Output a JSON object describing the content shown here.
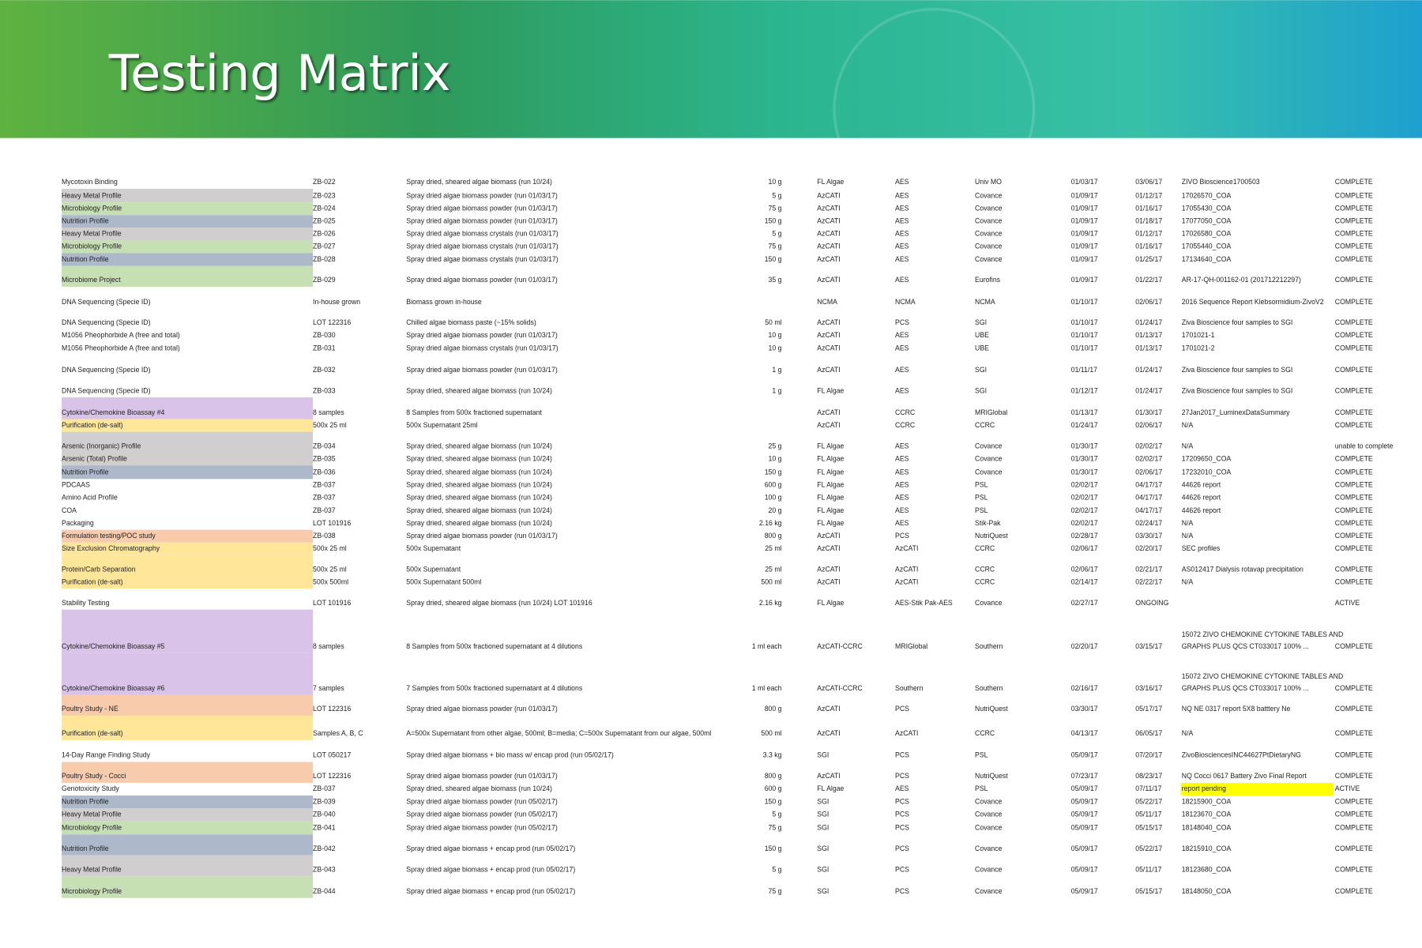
{
  "header": {
    "title": "Testing Matrix"
  },
  "table": {
    "rows": [
      {
        "color": null,
        "cells": [
          "Mycotoxin Binding",
          "ZB-022",
          "Spray dried, sheared algae biomass (run 10/24)",
          "10 g",
          "FL Algae",
          "AES",
          "Univ MO",
          "01/03/17",
          "03/06/17",
          "ZIVO Bioscience1700503",
          "COMPLETE"
        ]
      },
      {
        "color": "#d0cece",
        "cells": [
          "Heavy Metal Profile",
          "ZB-023",
          "Spray dried algae biomass powder (run 01/03/17)",
          "5 g",
          "AzCATI",
          "AES",
          "Covance",
          "01/09/17",
          "01/12/17",
          "17026570_COA",
          "COMPLETE"
        ]
      },
      {
        "color": "#c6e0b4",
        "cells": [
          "Microbiology Profile",
          "ZB-024",
          "Spray dried algae biomass powder (run 01/03/17)",
          "75 g",
          "AzCATI",
          "AES",
          "Covance",
          "01/09/17",
          "01/16/17",
          "17055430_COA",
          "COMPLETE"
        ]
      },
      {
        "color": "#adb9ca",
        "cells": [
          "Nutrition Profile",
          "ZB-025",
          "Spray dried algae biomass powder (run 01/03/17)",
          "150 g",
          "AzCATI",
          "AES",
          "Covance",
          "01/09/17",
          "01/18/17",
          "17077050_COA",
          "COMPLETE"
        ]
      },
      {
        "color": "#d0cece",
        "cells": [
          "Heavy Metal Profile",
          "ZB-026",
          "Spray dried algae biomass crystals (run 01/03/17)",
          "5 g",
          "AzCATI",
          "AES",
          "Covance",
          "01/09/17",
          "01/12/17",
          "17026580_COA",
          "COMPLETE"
        ]
      },
      {
        "color": "#c6e0b4",
        "cells": [
          "Microbiology Profile",
          "ZB-027",
          "Spray dried algae biomass crystals (run 01/03/17)",
          "75 g",
          "AzCATI",
          "AES",
          "Covance",
          "01/09/17",
          "01/16/17",
          "17055440_COA",
          "COMPLETE"
        ]
      },
      {
        "color": "#adb9ca",
        "cells": [
          "Nutrition Profile",
          "ZB-028",
          "Spray dried algae biomass crystals (run 01/03/17)",
          "150 g",
          "AzCATI",
          "AES",
          "Covance",
          "01/09/17",
          "01/25/17",
          "17134640_COA",
          "COMPLETE"
        ]
      },
      {
        "color": "#c6e0b4",
        "cells": [
          "Microbiome Project",
          "ZB-029",
          "Spray dried algae biomass powder (run 01/03/17)",
          "35 g",
          "AzCATI",
          "AES",
          "Eurofins",
          "01/09/17",
          "01/22/17",
          "AR-17-QH-001162-01 (201712212297)",
          "COMPLETE"
        ]
      },
      {
        "color": null,
        "cells": [
          "DNA Sequencing (Specie ID)",
          "In-house grown",
          "Biomass grown in-house",
          null,
          "NCMA",
          "NCMA",
          "NCMA",
          "01/10/17",
          "02/06/17",
          "2016 Sequence Report Klebsormidium-ZivoV2",
          "COMPLETE"
        ]
      },
      {
        "color": null,
        "cells": [
          "DNA Sequencing (Specie ID)",
          "LOT 122316",
          "Chilled algae biomass paste (~15% solids)",
          "50 ml",
          "AzCATI",
          "PCS",
          "SGI",
          "01/10/17",
          "01/24/17",
          "Ziva Bioscience four samples to SGI",
          "COMPLETE"
        ]
      },
      {
        "color": null,
        "cells": [
          "M1056 Pheophorbide A (free and total)",
          "ZB-030",
          "Spray dried algae biomass powder (run 01/03/17)",
          "10 g",
          "AzCATI",
          "AES",
          "UBE",
          "01/10/17",
          "01/13/17",
          "1701021-1",
          "COMPLETE"
        ]
      },
      {
        "color": null,
        "cells": [
          "M1056 Pheophorbide A (free and total)",
          "ZB-031",
          "Spray dried algae biomass crystals (run 01/03/17)",
          "10 g",
          "AzCATI",
          "AES",
          "UBE",
          "01/10/17",
          "01/13/17",
          "1701021-2",
          "COMPLETE"
        ]
      },
      {
        "color": null,
        "cells": [
          "DNA Sequencing (Specie ID)",
          "ZB-032",
          "Spray dried algae biomass powder (run 01/03/17)",
          "1 g",
          "AzCATI",
          "AES",
          "SGI",
          "01/11/17",
          "01/24/17",
          "Ziva Bioscience four samples to SGI",
          "COMPLETE"
        ]
      },
      {
        "color": null,
        "cells": [
          "DNA Sequencing (Specie ID)",
          "ZB-033",
          "Spray dried, sheared algae biomass (run 10/24)",
          "1 g",
          "FL Algae",
          "AES",
          "SGI",
          "01/12/17",
          "01/24/17",
          "Ziva Bioscience four samples to SGI",
          "COMPLETE"
        ]
      },
      {
        "color": "#d9c3e9",
        "cells": [
          "Cytokine/Chemokine Bioassay #4",
          "8 samples",
          "8 Samples from 500x fractioned supernatant",
          null,
          "AzCATI",
          "CCRC",
          "MRIGlobal",
          "01/13/17",
          "01/30/17",
          "27Jan2017_LuminexDataSummary",
          "COMPLETE"
        ]
      },
      {
        "color": "#ffe699",
        "cells": [
          "Purification (de-salt)",
          "500x 25 ml",
          "500x Supernatant 25ml",
          null,
          "AzCATI",
          "CCRC",
          "CCRC",
          "01/24/17",
          "02/06/17",
          "N/A",
          "COMPLETE"
        ]
      },
      {
        "color": "#d0cece",
        "cells": [
          "Arsenic (Inorganic) Profile",
          "ZB-034",
          "Spray dried, sheared algae biomass (run 10/24)",
          "25 g",
          "FL Algae",
          "AES",
          "Covance",
          "01/30/17",
          "02/02/17",
          "N/A",
          "unable to complete"
        ]
      },
      {
        "color": "#d0cece",
        "cells": [
          "Arsenic (Total) Profile",
          "ZB-035",
          "Spray dried, sheared algae biomass (run 10/24)",
          "10 g",
          "FL Algae",
          "AES",
          "Covance",
          "01/30/17",
          "02/02/17",
          "17209650_COA",
          "COMPLETE"
        ]
      },
      {
        "color": "#adb9ca",
        "cells": [
          "Nutrition Profile",
          "ZB-036",
          "Spray dried, sheared algae biomass (run 10/24)",
          "150 g",
          "FL Algae",
          "AES",
          "Covance",
          "01/30/17",
          "02/06/17",
          "17232010_COA",
          "COMPLETE"
        ]
      },
      {
        "color": null,
        "cells": [
          "PDCAAS",
          "ZB-037",
          "Spray dried, sheared algae biomass (run 10/24)",
          "600 g",
          "FL Algae",
          "AES",
          "PSL",
          "02/02/17",
          "04/17/17",
          "44626 report",
          "COMPLETE"
        ]
      },
      {
        "color": null,
        "cells": [
          "Amino Acid Profile",
          "ZB-037",
          "Spray dried, sheared algae biomass (run 10/24)",
          "100 g",
          "FL Algae",
          "AES",
          "PSL",
          "02/02/17",
          "04/17/17",
          "44626 report",
          "COMPLETE"
        ]
      },
      {
        "color": null,
        "cells": [
          "COA",
          "ZB-037",
          "Spray dried, sheared algae biomass (run 10/24)",
          "20 g",
          "FL Algae",
          "AES",
          "PSL",
          "02/02/17",
          "04/17/17",
          "44626 report",
          "COMPLETE"
        ]
      },
      {
        "color": null,
        "cells": [
          "Packaging",
          "LOT 101916",
          "Spray dried, sheared algae biomass (run 10/24)",
          "2.16 kg",
          "FL Algae",
          "AES",
          "Stik-Pak",
          "02/02/17",
          "02/24/17",
          "N/A",
          "COMPLETE"
        ]
      },
      {
        "color": "#f8cbad",
        "cells": [
          "Formulation testing/POC study",
          "ZB-038",
          "Spray dried algae biomass powder (run 01/03/17)",
          "800 g",
          "AzCATI",
          "PCS",
          "NutriQuest",
          "02/28/17",
          "03/30/17",
          "N/A",
          "COMPLETE"
        ]
      },
      {
        "color": "#ffe699",
        "cells": [
          "Size Exclusion Chromatography",
          "500x 25 ml",
          "500x Supernatant",
          "25 ml",
          "AzCATI",
          "AzCATI",
          "CCRC",
          "02/06/17",
          "02/20/17",
          "SEC profiles",
          "COMPLETE"
        ]
      },
      {
        "color": "#ffe699",
        "cells": [
          "Protein/Carb Separation",
          "500x 25 ml",
          "500x Supernatant",
          "25 ml",
          "AzCATI",
          "AzCATI",
          "CCRC",
          "02/06/17",
          "02/21/17",
          "AS012417 Dialysis rotavap precipitation",
          "COMPLETE"
        ]
      },
      {
        "color": "#ffe699",
        "cells": [
          "Purification (de-salt)",
          "500x 500ml",
          "500x Supernatant 500ml",
          "500 ml",
          "AzCATI",
          "AzCATI",
          "CCRC",
          "02/14/17",
          "02/22/17",
          "N/A",
          "COMPLETE"
        ]
      },
      {
        "color": null,
        "cells": [
          "Stability Testing",
          "LOT 101916",
          "Spray dried, sheared algae biomass (run 10/24) LOT 101916",
          "2.16 kg",
          "FL Algae",
          "AES-Stik Pak-AES",
          "Covance",
          "02/27/17",
          "ONGOING",
          null,
          "ACTIVE"
        ]
      },
      {
        "color": "#d9c3e9",
        "cells": [
          "Cytokine/Chemokine Bioassay #5",
          "8 samples",
          "8 Samples from 500x fractioned supernatant at 4 dilutions",
          "1 ml each",
          "AzCATI-CCRC",
          "MRIGlobal",
          "Southern",
          "02/20/17",
          "03/15/17",
          [
            "15072 ZIVO CHEMOKINE CYTOKINE TABLES AND",
            "GRAPHS PLUS QCS CT033017 100% ..."
          ],
          "COMPLETE"
        ]
      },
      {
        "color": "#d9c3e9",
        "cells": [
          "Cytokine/Chemokine Bioassay #6",
          "7 samples",
          "7 Samples from 500x fractioned supernatant at 4 dilutions",
          "1 ml each",
          "AzCATI-CCRC",
          "Southern",
          "Southern",
          "02/16/17",
          "03/16/17",
          [
            "15072 ZIVO CHEMOKINE CYTOKINE TABLES AND",
            "GRAPHS PLUS QCS CT033017 100% ..."
          ],
          "COMPLETE"
        ]
      },
      {
        "color": "#f8cbad",
        "cells": [
          "Poultry Study - NE",
          "LOT 122316",
          "Spray dried algae biomass powder (run 01/03/17)",
          "800 g",
          "AzCATI",
          "PCS",
          "NutriQuest",
          "03/30/17",
          "05/17/17",
          "NQ NE 0317 report 5X8 batttery Ne",
          "COMPLETE"
        ]
      },
      {
        "color": "#ffe699",
        "cells": [
          "Purification (de-salt)",
          "Samples A, B, C",
          "A=500x Supernatant from other algae, 500ml; B=media; C=500x Supernatant from our algae, 500ml",
          "500 ml",
          "AzCATI",
          "AzCATI",
          "CCRC",
          "04/13/17",
          "06/05/17",
          "N/A",
          "COMPLETE"
        ]
      },
      {
        "color": null,
        "cells": [
          "14-Day Range Finding Study",
          "LOT 050217",
          "Spray dried algae biomass + bio mass w/ encap prod (run 05/02/17)",
          "3.3 kg",
          "SGI",
          "PCS",
          "PSL",
          "05/09/17",
          "07/20/17",
          "ZivoBiosciencesINC44627PtDietaryNG",
          "COMPLETE"
        ]
      },
      {
        "color": "#f8cbad",
        "cells": [
          "Poultry Study - Cocci",
          "LOT 122316",
          "Spray dried algae biomass powder (run 01/03/17)",
          "800 g",
          "AzCATI",
          "PCS",
          "NutriQuest",
          "07/23/17",
          "08/23/17",
          "NQ Cocci 0617 Battery Zivo Final Report",
          "COMPLETE"
        ]
      },
      {
        "color": null,
        "highlight": "#ffff00",
        "cells": [
          "Genotoxicity Study",
          "ZB-037",
          "Spray dried, sheared algae biomass (run 10/24)",
          "600 g",
          "FL Algae",
          "AES",
          "PSL",
          "05/09/17",
          "07/11/17",
          "report pending",
          "ACTIVE"
        ]
      },
      {
        "color": "#adb9ca",
        "cells": [
          "Nutrition Profile",
          "ZB-039",
          "Spray dried algae biomass powder (run 05/02/17)",
          "150 g",
          "SGI",
          "PCS",
          "Covance",
          "05/09/17",
          "05/22/17",
          "18215900_COA",
          "COMPLETE"
        ]
      },
      {
        "color": "#d0cece",
        "cells": [
          "Heavy Metal Profile",
          "ZB-040",
          "Spray dried algae biomass powder (run 05/02/17)",
          "5 g",
          "SGI",
          "PCS",
          "Covance",
          "05/09/17",
          "05/11/17",
          "18123670_COA",
          "COMPLETE"
        ]
      },
      {
        "color": "#c6e0b4",
        "cells": [
          "Microbiology Profile",
          "ZB-041",
          "Spray dried algae biomass powder (run 05/02/17)",
          "75 g",
          "SGI",
          "PCS",
          "Covance",
          "05/09/17",
          "05/15/17",
          "18148040_COA",
          "COMPLETE"
        ]
      },
      {
        "color": "#adb9ca",
        "cells": [
          "Nutrition Profile",
          "ZB-042",
          "Spray dried algae biomass + encap prod (run 05/02/17)",
          "150 g",
          "SGI",
          "PCS",
          "Covance",
          "05/09/17",
          "05/22/17",
          "18215910_COA",
          "COMPLETE"
        ]
      },
      {
        "color": "#d0cece",
        "cells": [
          "Heavy Metal Profile",
          "ZB-043",
          "Spray dried algae biomass + encap prod (run 05/02/17)",
          "5 g",
          "SGI",
          "PCS",
          "Covance",
          "05/09/17",
          "05/11/17",
          "18123680_COA",
          "COMPLETE"
        ]
      },
      {
        "color": "#c6e0b4",
        "cells": [
          "Microbiology Profile",
          "ZB-044",
          "Spray dried algae biomass + encap prod (run 05/02/17)",
          "75 g",
          "SGI",
          "PCS",
          "Covance",
          "05/09/17",
          "05/15/17",
          "18148050_COA",
          "COMPLETE"
        ]
      }
    ]
  }
}
